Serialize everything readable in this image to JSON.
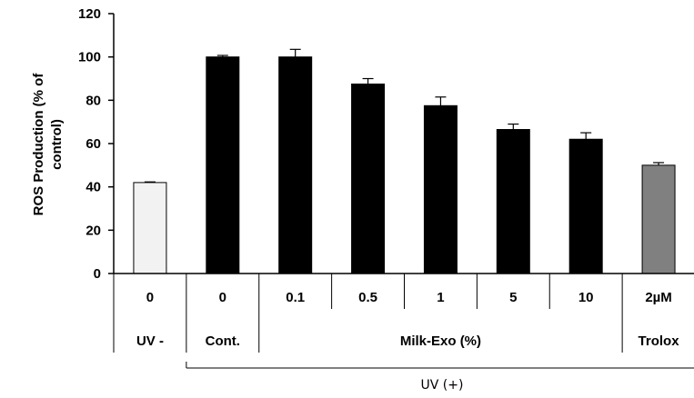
{
  "chart_data": {
    "type": "bar",
    "ylabel_line1": "ROS Production (% of",
    "ylabel_line2": "control)",
    "ylim": [
      0,
      120
    ],
    "yticks": [
      "0",
      "20",
      "40",
      "60",
      "80",
      "100",
      "120"
    ],
    "categories": [
      "0",
      "0",
      "0.1",
      "0.5",
      "1",
      "5",
      "10",
      "2µM"
    ],
    "values": [
      42,
      100,
      100,
      87.5,
      77.5,
      66.5,
      62,
      50
    ],
    "errors": [
      0.3,
      0.7,
      3.5,
      2.5,
      4,
      2.5,
      3,
      1.2
    ],
    "bar_colors": [
      "#f2f2f2",
      "#000000",
      "#000000",
      "#000000",
      "#000000",
      "#000000",
      "#000000",
      "#808080"
    ],
    "groups": [
      {
        "label": "UV -",
        "span": [
          0,
          0
        ]
      },
      {
        "label": "Cont.",
        "span": [
          1,
          1
        ]
      },
      {
        "label": "Milk-Exo  (%)",
        "span": [
          2,
          6
        ]
      },
      {
        "label": "Trolox",
        "span": [
          7,
          7
        ]
      }
    ],
    "bracket_label": "UV (+)",
    "bracket_span": [
      1,
      7
    ]
  }
}
